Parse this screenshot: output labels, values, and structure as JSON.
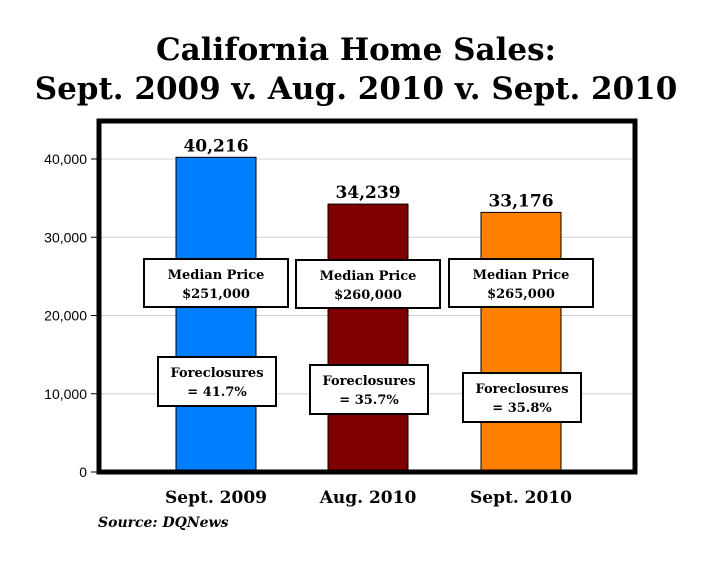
{
  "title_line1": "California Home Sales:",
  "title_line2": "Sept. 2009 v. Aug. 2010 v. Sept. 2010",
  "source": "Source: DQNews",
  "chart_data": {
    "type": "bar",
    "title": "California Home Sales: Sept. 2009 v. Aug. 2010 v. Sept. 2010",
    "categories": [
      "Sept. 2009",
      "Aug. 2010",
      "Sept. 2010"
    ],
    "values": [
      40216,
      34239,
      33176
    ],
    "data_labels": [
      "40,216",
      "34,239",
      "33,176"
    ],
    "bar_colors": [
      "#0080ff",
      "#800000",
      "#ff8000"
    ],
    "ylim": [
      0,
      40000
    ],
    "yticks": [
      0,
      10000,
      20000,
      30000,
      40000
    ],
    "ytick_labels": [
      "0",
      "10,000",
      "20,000",
      "30,000",
      "40,000"
    ],
    "grid": true,
    "median_price_heading": "Median Price",
    "median_prices": [
      "$251,000",
      "$260,000",
      "$265,000"
    ],
    "foreclosures_heading": "Foreclosures",
    "foreclosures": [
      "= 41.7%",
      "= 35.7%",
      "= 35.8%"
    ]
  }
}
